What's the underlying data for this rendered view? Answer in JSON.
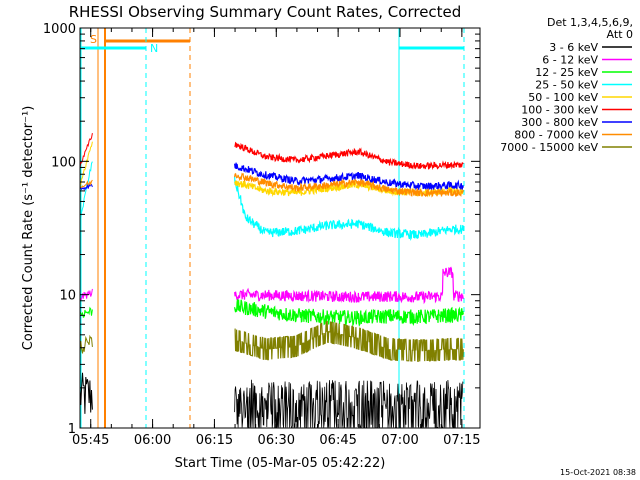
{
  "chart_data": {
    "type": "line",
    "title": "RHESSI Observing Summary Count Rates, Corrected",
    "ylabel": "Corrected Count Rate (s⁻¹ detector⁻¹)",
    "xlabel": "Start Time (05-Mar-05 05:42:22)",
    "footer_date": "15-Oct-2021 08:38",
    "y_scale": "log",
    "ylim": [
      1,
      1000
    ],
    "xlim_minutes": [
      0,
      97
    ],
    "y_ticks": [
      {
        "value": 1,
        "label": "1"
      },
      {
        "value": 10,
        "label": "10"
      },
      {
        "value": 100,
        "label": "100"
      },
      {
        "value": 1000,
        "label": "1000"
      }
    ],
    "x_ticks": [
      {
        "minutes": 2.6,
        "label": "05:45"
      },
      {
        "minutes": 17.6,
        "label": "06:00"
      },
      {
        "minutes": 32.6,
        "label": "06:15"
      },
      {
        "minutes": 47.6,
        "label": "06:30"
      },
      {
        "minutes": 62.6,
        "label": "06:45"
      },
      {
        "minutes": 77.6,
        "label": "07:00"
      },
      {
        "minutes": 92.6,
        "label": "07:15"
      }
    ],
    "legend": {
      "header": [
        "Det 1,3,4,5,6,9,",
        "Att 0"
      ],
      "placement": "right"
    },
    "annotations": [
      {
        "label": "S",
        "color": "#ff8000"
      },
      {
        "label": "N",
        "color": "#00ffff"
      }
    ],
    "data_gap_minutes": [
      29.8,
      37.5
    ],
    "series": [
      {
        "name": "3 - 6 keV",
        "color": "#000000",
        "level": [
          1.3,
          1.6,
          1.8,
          1.6,
          1.5,
          1.6,
          1.5,
          1.6
        ]
      },
      {
        "name": "6 - 12 keV",
        "color": "#ff00ff",
        "level": [
          10,
          9.9,
          9.8,
          9.7,
          9.6,
          9.7,
          9.6,
          9.8
        ]
      },
      {
        "name": "12 - 25 keV",
        "color": "#00ff00",
        "level": [
          8.2,
          7.5,
          7.0,
          6.8,
          6.7,
          6.9,
          6.8,
          7.0
        ]
      },
      {
        "name": "25 - 50 keV",
        "color": "#00ffff",
        "level": [
          44,
          29,
          30,
          33,
          34,
          29,
          28,
          31
        ]
      },
      {
        "name": "50 - 100 keV",
        "color": "#ffd700",
        "level": [
          70,
          60,
          58,
          63,
          67,
          60,
          58,
          60
        ]
      },
      {
        "name": "100 - 300 keV",
        "color": "#ff0000",
        "level": [
          135,
          108,
          102,
          110,
          118,
          98,
          92,
          94
        ]
      },
      {
        "name": "300 - 800 keV",
        "color": "#0000ff",
        "level": [
          93,
          79,
          71,
          74,
          78,
          69,
          65,
          66
        ]
      },
      {
        "name": "800 - 7000 keV",
        "color": "#ff8c00",
        "level": [
          80,
          69,
          63,
          66,
          70,
          61,
          58,
          58
        ]
      },
      {
        "name": "7000 - 15000 keV",
        "color": "#808000",
        "level": [
          4.6,
          3.9,
          4.1,
          5.3,
          4.7,
          3.9,
          3.8,
          3.9
        ]
      }
    ],
    "segment_minutes": [
      37.5,
      45,
      52.5,
      60,
      67.5,
      75,
      82.5,
      90
    ]
  }
}
